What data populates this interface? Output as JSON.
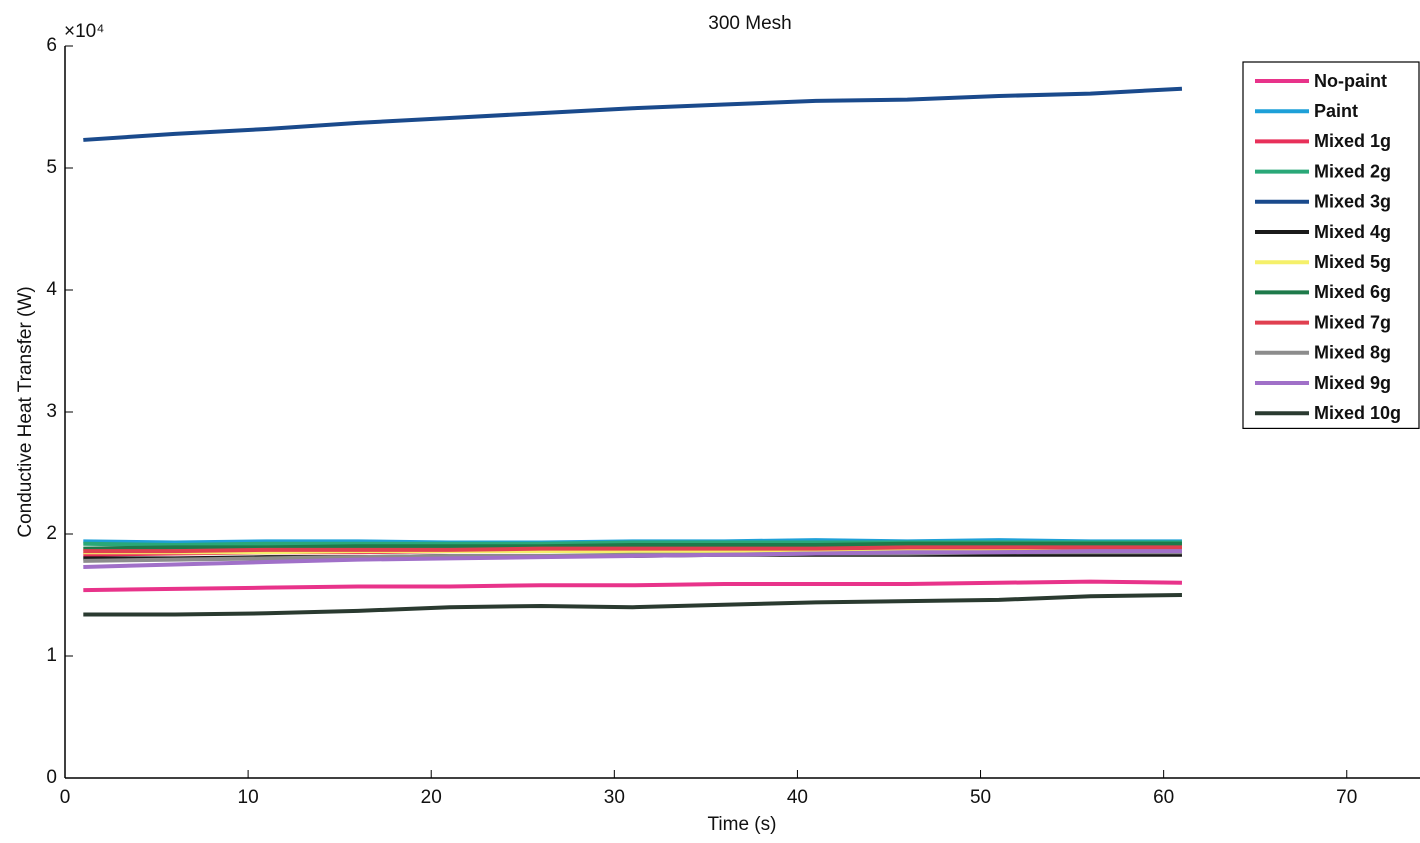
{
  "chart_data": {
    "type": "line",
    "title": "300 Mesh",
    "x_label": "Time (s)",
    "y_label": "Conductive Heat Transfer (W)",
    "y_multiplier": "×10⁴",
    "x": [
      1,
      6,
      11,
      16,
      21,
      26,
      31,
      36,
      41,
      46,
      51,
      56,
      61
    ],
    "xlim": [
      0,
      74
    ],
    "xticks": [
      0,
      10,
      20,
      30,
      40,
      50,
      60,
      70
    ],
    "ylim": [
      0,
      6
    ],
    "yticks": [
      0,
      1,
      2,
      3,
      4,
      5,
      6
    ],
    "legend": "upper-right",
    "series": [
      {
        "name": "No-paint",
        "color": "#e8338a",
        "values": [
          1.54,
          1.55,
          1.56,
          1.57,
          1.57,
          1.58,
          1.58,
          1.59,
          1.59,
          1.59,
          1.6,
          1.61,
          1.6
        ]
      },
      {
        "name": "Paint",
        "color": "#1ea0d8",
        "values": [
          1.94,
          1.93,
          1.94,
          1.94,
          1.93,
          1.93,
          1.94,
          1.94,
          1.95,
          1.94,
          1.95,
          1.94,
          1.94
        ]
      },
      {
        "name": "Mixed 1g",
        "color": "#e8305a",
        "values": [
          1.83,
          1.84,
          1.85,
          1.85,
          1.86,
          1.86,
          1.87,
          1.87,
          1.87,
          1.88,
          1.88,
          1.88,
          1.88
        ]
      },
      {
        "name": "Mixed 2g",
        "color": "#2aa878",
        "values": [
          1.92,
          1.91,
          1.92,
          1.92,
          1.92,
          1.92,
          1.93,
          1.93,
          1.93,
          1.93,
          1.93,
          1.93,
          1.93
        ]
      },
      {
        "name": "Mixed 3g",
        "color": "#1a4a8c",
        "values": [
          5.23,
          5.28,
          5.32,
          5.37,
          5.41,
          5.45,
          5.49,
          5.52,
          5.55,
          5.56,
          5.59,
          5.61,
          5.65
        ]
      },
      {
        "name": "Mixed 4g",
        "color": "#1a1a1a",
        "values": [
          1.8,
          1.8,
          1.81,
          1.81,
          1.82,
          1.82,
          1.82,
          1.83,
          1.83,
          1.83,
          1.83,
          1.83,
          1.83
        ]
      },
      {
        "name": "Mixed 5g",
        "color": "#f5f06a",
        "values": [
          1.85,
          1.85,
          1.85,
          1.86,
          1.86,
          1.86,
          1.86,
          1.86,
          1.86,
          1.87,
          1.87,
          1.87,
          1.87
        ]
      },
      {
        "name": "Mixed 6g",
        "color": "#1e7a4a",
        "values": [
          1.88,
          1.89,
          1.89,
          1.9,
          1.9,
          1.9,
          1.91,
          1.91,
          1.91,
          1.92,
          1.92,
          1.92,
          1.92
        ]
      },
      {
        "name": "Mixed 7g",
        "color": "#e04050",
        "values": [
          1.86,
          1.86,
          1.87,
          1.87,
          1.87,
          1.88,
          1.88,
          1.88,
          1.88,
          1.89,
          1.89,
          1.89,
          1.89
        ]
      },
      {
        "name": "Mixed 8g",
        "color": "#8c8c8c",
        "values": [
          1.78,
          1.79,
          1.8,
          1.81,
          1.82,
          1.82,
          1.83,
          1.83,
          1.84,
          1.84,
          1.85,
          1.85,
          1.85
        ]
      },
      {
        "name": "Mixed 9g",
        "color": "#a070c8",
        "values": [
          1.73,
          1.75,
          1.77,
          1.79,
          1.8,
          1.81,
          1.82,
          1.83,
          1.84,
          1.85,
          1.85,
          1.86,
          1.86
        ]
      },
      {
        "name": "Mixed 10g",
        "color": "#2a3a30",
        "values": [
          1.34,
          1.34,
          1.35,
          1.37,
          1.4,
          1.41,
          1.4,
          1.42,
          1.44,
          1.45,
          1.46,
          1.49,
          1.5
        ]
      }
    ]
  }
}
